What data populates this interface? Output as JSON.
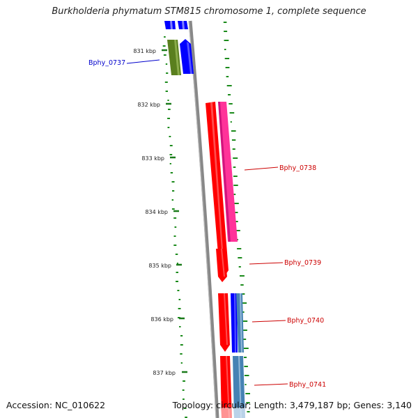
{
  "title": "Burkholderia phymatum STM815 chromosome 1, complete sequence",
  "accession": "Accession: NC_010622",
  "summary": "Topology: circular; Length: 3,479,187 bp; Genes: 3,140",
  "ticks": [
    "831 kbp",
    "832 kbp",
    "833 kbp",
    "834 kbp",
    "835 kbp",
    "836 kbp",
    "837 kbp"
  ],
  "genes": [
    {
      "label": "Bphy_0737",
      "color": "#0000cc"
    },
    {
      "label": "Bphy_0738",
      "color": "#cc0000"
    },
    {
      "label": "Bphy_0739",
      "color": "#cc0000"
    },
    {
      "label": "Bphy_0740",
      "color": "#cc0000"
    },
    {
      "label": "Bphy_0741",
      "color": "#cc0000"
    }
  ],
  "colors": {
    "backbone": "#888888",
    "tick": "#1a7a1a",
    "gc_dots": "#1a8a1a",
    "cds_forward": "#ff0000",
    "cds_pink": "#ff3399",
    "cds_blue": "#0000ff",
    "cds_steel": "#4682b4",
    "cds_olive": "#5a7f1e"
  }
}
